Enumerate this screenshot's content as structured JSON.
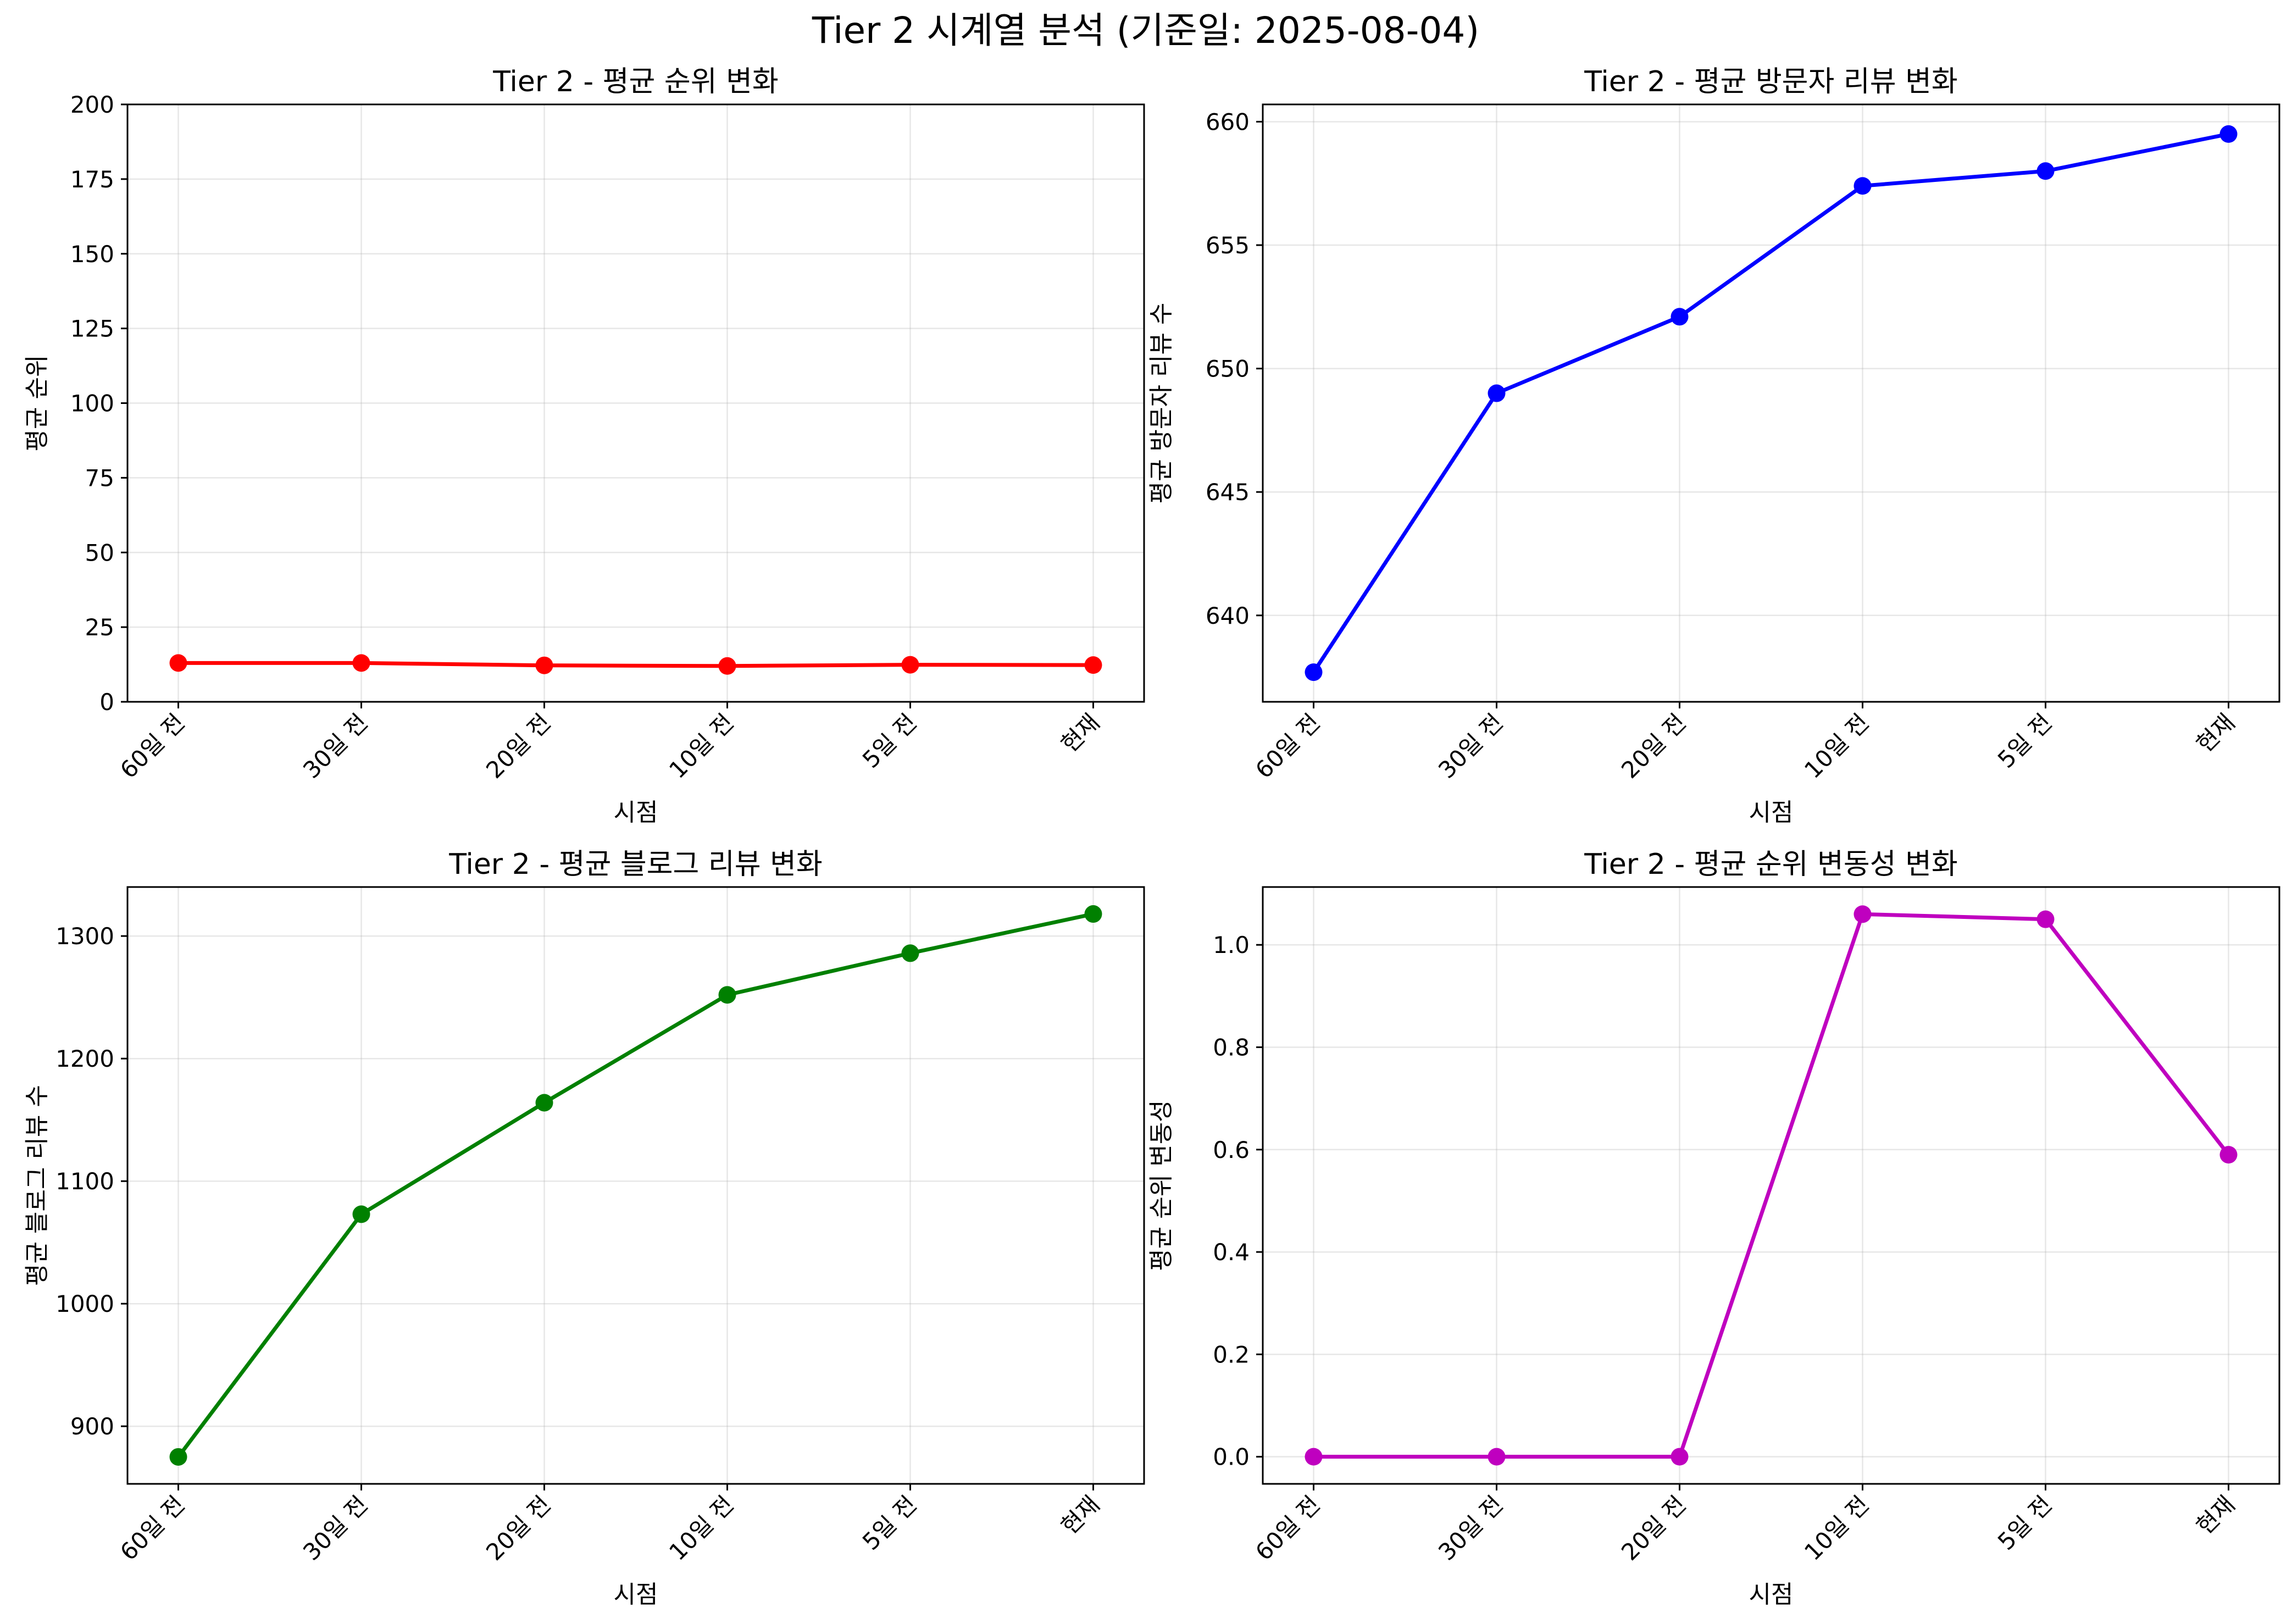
{
  "suptitle": "Tier 2 시계열 분석 (기준일: 2025-08-04)",
  "chart_data": [
    {
      "type": "line",
      "title": "Tier 2 - 평균 순위 변화",
      "xlabel": "시점",
      "ylabel": "평균 순위",
      "categories": [
        "60일 전",
        "30일 전",
        "20일 전",
        "10일 전",
        "5일 전",
        "현재"
      ],
      "values": [
        13.0,
        13.0,
        12.2,
        12.0,
        12.4,
        12.3
      ],
      "ylim": [
        0,
        200
      ],
      "yticks": [
        0,
        25,
        50,
        75,
        100,
        125,
        150,
        175,
        200
      ],
      "color": "#ff0000",
      "grid": true
    },
    {
      "type": "line",
      "title": "Tier 2 - 평균 방문자 리뷰 변화",
      "xlabel": "시점",
      "ylabel": "평균 방문자 리뷰 수",
      "categories": [
        "60일 전",
        "30일 전",
        "20일 전",
        "10일 전",
        "5일 전",
        "현재"
      ],
      "values": [
        637.7,
        649.0,
        652.1,
        657.4,
        658.0,
        659.5
      ],
      "ylim": [
        636.5,
        660.7
      ],
      "yticks": [
        640,
        645,
        650,
        655,
        660
      ],
      "color": "#0000ff",
      "grid": true
    },
    {
      "type": "line",
      "title": "Tier 2 - 평균 블로그 리뷰 변화",
      "xlabel": "시점",
      "ylabel": "평균 블로그 리뷰 수",
      "categories": [
        "60일 전",
        "30일 전",
        "20일 전",
        "10일 전",
        "5일 전",
        "현재"
      ],
      "values": [
        875,
        1073,
        1164,
        1252,
        1286,
        1318
      ],
      "ylim": [
        853,
        1340
      ],
      "yticks": [
        900,
        1000,
        1100,
        1200,
        1300
      ],
      "color": "#008000",
      "grid": true
    },
    {
      "type": "line",
      "title": "Tier 2 - 평균 순위 변동성 변화",
      "xlabel": "시점",
      "ylabel": "평균 순위 변동성",
      "categories": [
        "60일 전",
        "30일 전",
        "20일 전",
        "10일 전",
        "5일 전",
        "현재"
      ],
      "values": [
        0.0,
        0.0,
        0.0,
        1.06,
        1.05,
        0.59
      ],
      "ylim": [
        -0.053,
        1.113
      ],
      "yticks": [
        0.0,
        0.2,
        0.4,
        0.6,
        0.8,
        1.0
      ],
      "tick_format": "0.0",
      "color": "#bf00bf",
      "grid": true
    }
  ]
}
